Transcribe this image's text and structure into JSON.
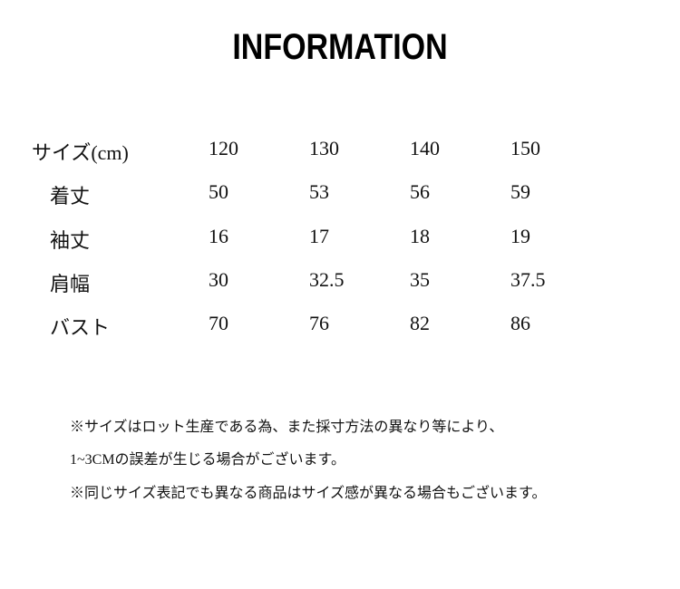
{
  "title": "INFORMATION",
  "table": {
    "header": {
      "label": "サイズ(cm)",
      "values": [
        "120",
        "130",
        "140",
        "150"
      ]
    },
    "rows": [
      {
        "label": "着丈",
        "values": [
          "50",
          "53",
          "56",
          "59"
        ]
      },
      {
        "label": "袖丈",
        "values": [
          "16",
          "17",
          "18",
          "19"
        ]
      },
      {
        "label": "肩幅",
        "values": [
          "30",
          "32.5",
          "35",
          "37.5"
        ]
      },
      {
        "label": "バスト",
        "values": [
          "70",
          "76",
          "82",
          "86"
        ]
      }
    ]
  },
  "notes": [
    "※サイズはロット生産である為、また採寸方法の異なり等により、",
    "1~3CMの誤差が生じる場合がございます。",
    "※同じサイズ表記でも異なる商品はサイズ感が異なる場合もございます。"
  ]
}
